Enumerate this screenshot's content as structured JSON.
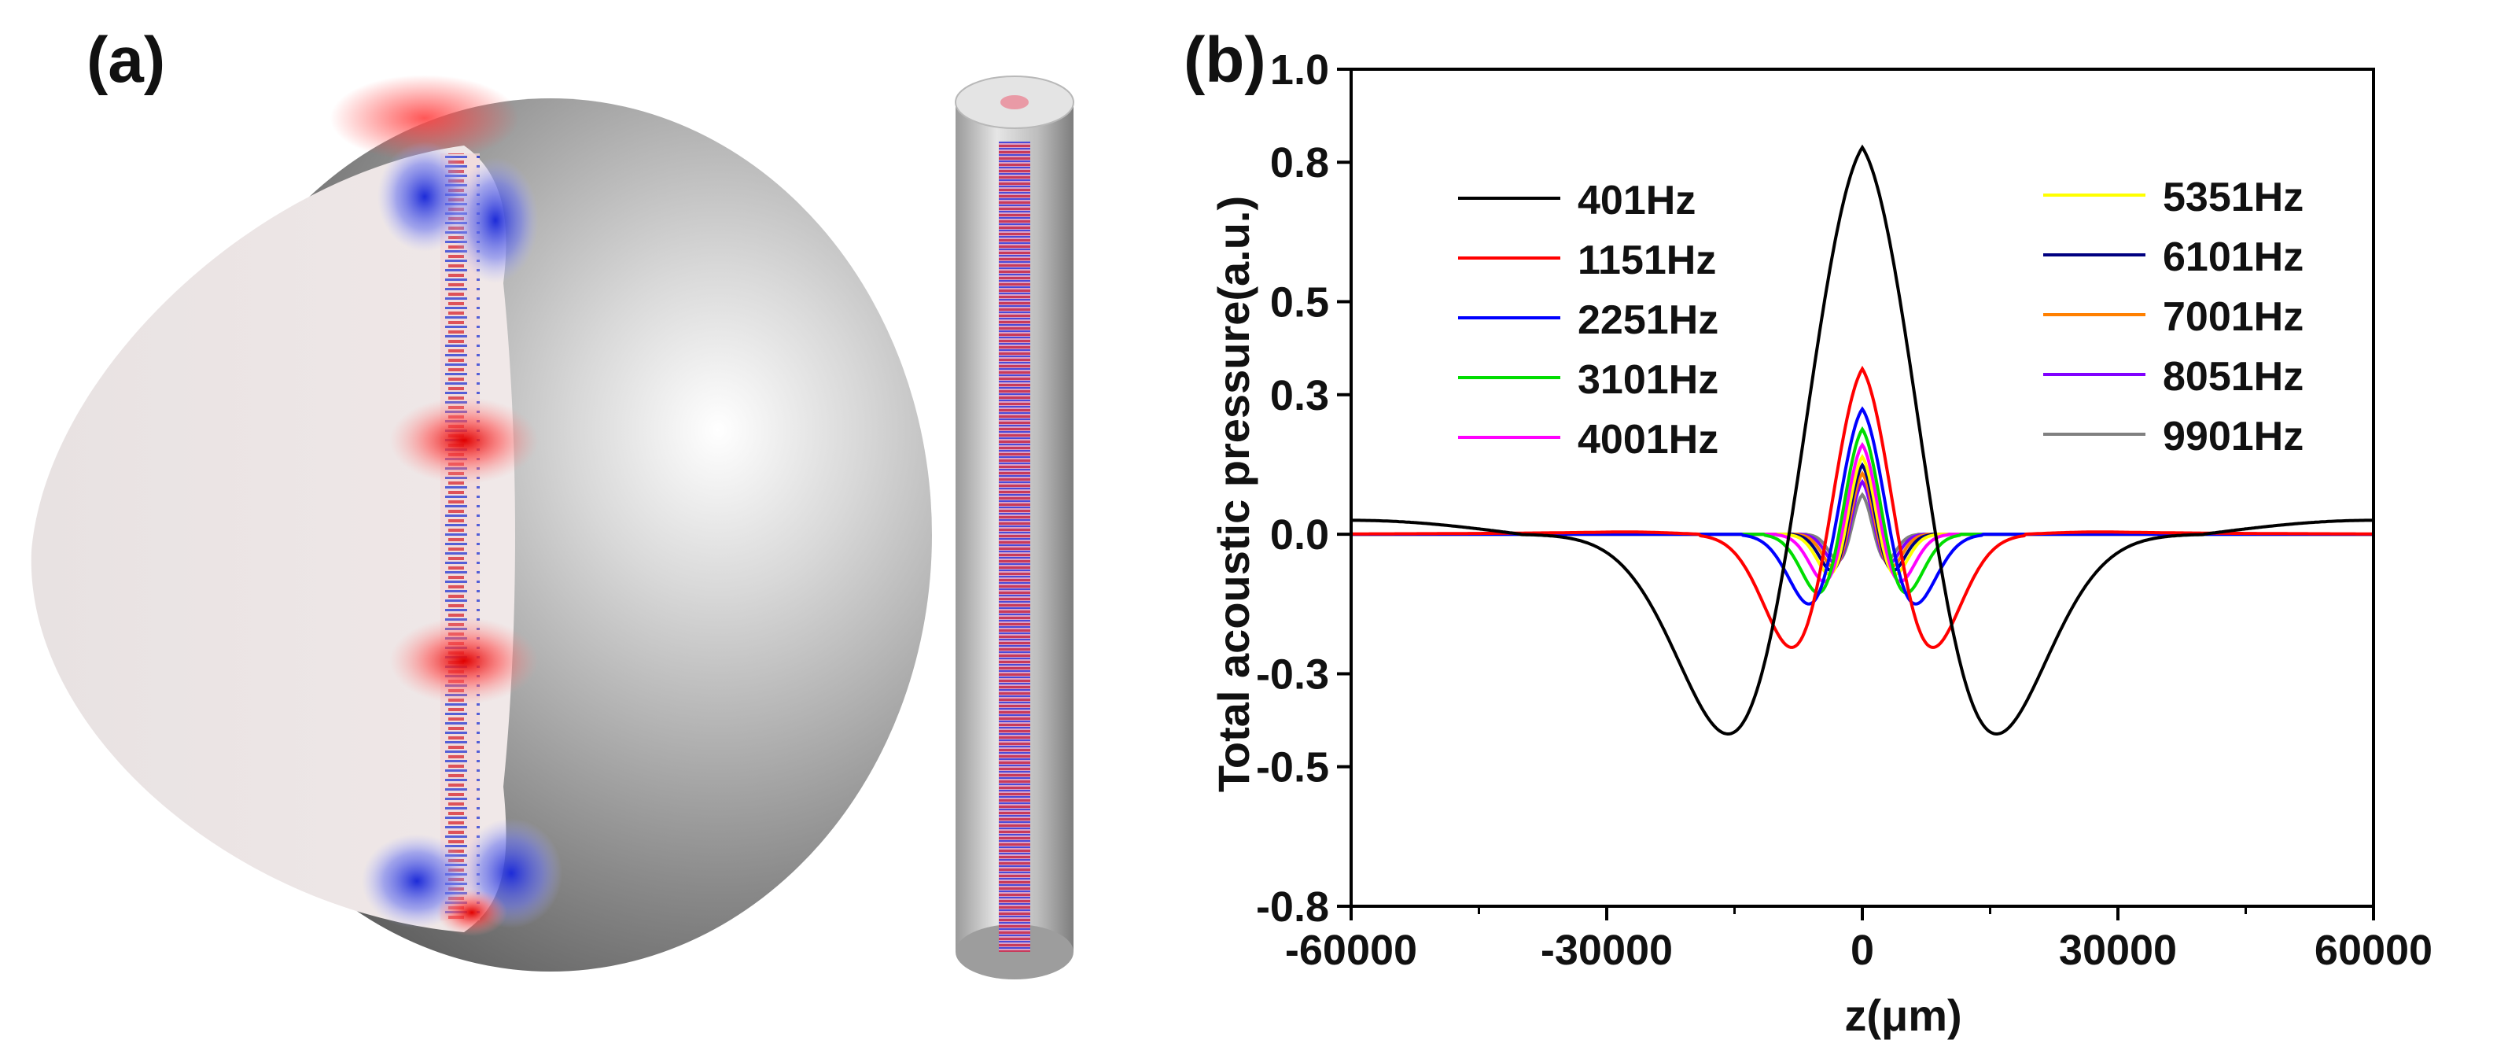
{
  "panels": {
    "a_label": "(a)",
    "b_label": "(b)"
  },
  "chart_data": {
    "type": "line",
    "xlabel": "z(μm)",
    "ylabel": "Total acoustic pressure(a.u.)",
    "xlim": [
      -60000,
      60000
    ],
    "ylim": [
      -0.8,
      1.0
    ],
    "x_ticks": [
      -60000,
      -30000,
      0,
      30000,
      60000
    ],
    "x_tick_labels": [
      "-60000",
      "-30000",
      "0",
      "30000",
      "60000"
    ],
    "y_ticks": [
      -0.8,
      -0.5,
      -0.3,
      0.0,
      0.3,
      0.5,
      0.8,
      1.0
    ],
    "y_tick_labels": [
      "-0.8",
      "-0.5",
      "-0.3",
      "0.0",
      "0.3",
      "0.5",
      "0.8",
      "1.0"
    ],
    "grid": false,
    "legend_position": "top, two columns",
    "series": [
      {
        "name": "401Hz",
        "color": "#000000",
        "peak": 0.95,
        "trough": -0.55,
        "trough_z": 13000,
        "zero_z": 40000,
        "side_lobe": 0.03
      },
      {
        "name": "1151Hz",
        "color": "#ff0000",
        "peak": 0.42,
        "trough": -0.3,
        "trough_z": 7000,
        "zero_z": 19000,
        "side_lobe": 0.005
      },
      {
        "name": "2251Hz",
        "color": "#0000ff",
        "peak": 0.31,
        "trough": -0.19,
        "trough_z": 5200,
        "zero_z": 14000,
        "side_lobe": 0.0
      },
      {
        "name": "3101Hz",
        "color": "#00dd00",
        "peak": 0.26,
        "trough": -0.16,
        "trough_z": 4300,
        "zero_z": 11500,
        "side_lobe": 0.0
      },
      {
        "name": "4001Hz",
        "color": "#ff00ff",
        "peak": 0.22,
        "trough": -0.13,
        "trough_z": 3700,
        "zero_z": 10000,
        "side_lobe": 0.0
      },
      {
        "name": "5351Hz",
        "color": "#ffff00",
        "peak": 0.19,
        "trough": -0.11,
        "trough_z": 3200,
        "zero_z": 8500,
        "side_lobe": 0.0
      },
      {
        "name": "6101Hz",
        "color": "#000080",
        "peak": 0.17,
        "trough": -0.1,
        "trough_z": 3000,
        "zero_z": 8000,
        "side_lobe": 0.0
      },
      {
        "name": "7001Hz",
        "color": "#ff8000",
        "peak": 0.15,
        "trough": -0.09,
        "trough_z": 2800,
        "zero_z": 7500,
        "side_lobe": 0.0
      },
      {
        "name": "8051Hz",
        "color": "#8000ff",
        "peak": 0.13,
        "trough": -0.08,
        "trough_z": 2600,
        "zero_z": 7000,
        "side_lobe": 0.0
      },
      {
        "name": "9901Hz",
        "color": "#808080",
        "peak": 0.1,
        "trough": -0.07,
        "trough_z": 2400,
        "zero_z": 6500,
        "side_lobe": 0.0
      }
    ]
  }
}
